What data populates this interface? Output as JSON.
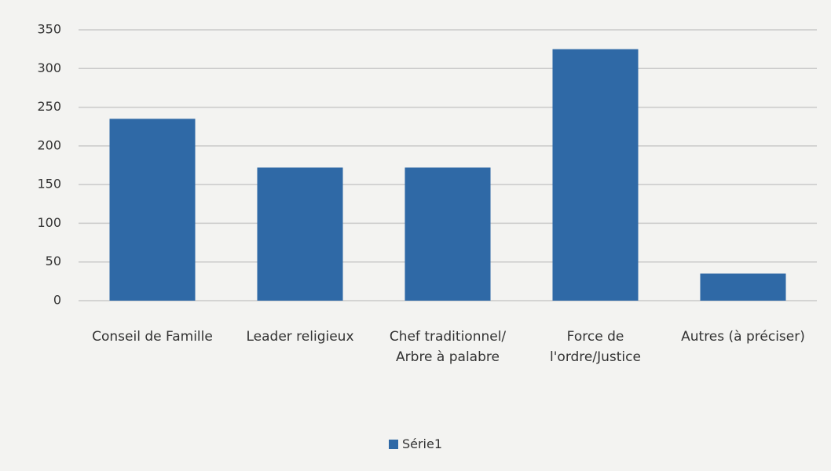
{
  "chart_data": {
    "type": "bar",
    "categories": [
      "Conseil de Famille",
      "Leader religieux",
      "Chef traditionnel/ Arbre à palabre",
      "Force de l'ordre/Justice",
      "Autres (à préciser)"
    ],
    "series": [
      {
        "name": "Série1",
        "color": "#2f69a6",
        "values": [
          235,
          172,
          172,
          325,
          35
        ]
      }
    ],
    "ylim": [
      0,
      350
    ],
    "yticks": [
      0,
      50,
      100,
      150,
      200,
      250,
      300,
      350
    ],
    "grid": true,
    "legend": "bottom"
  }
}
